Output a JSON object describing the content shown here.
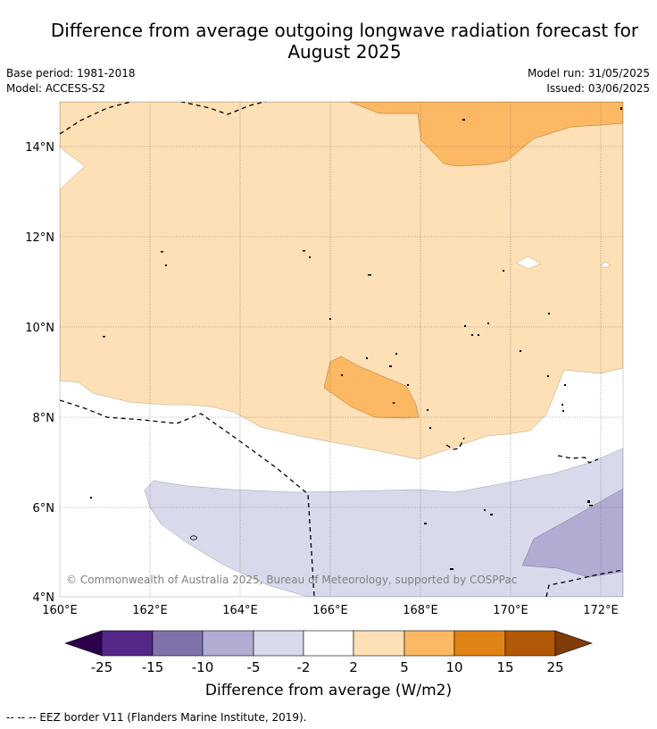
{
  "header": {
    "title_line1": "Difference from average outgoing longwave radiation forecast for",
    "title_line2": "August 2025",
    "base_period": "Base period: 1981-2018",
    "model": "Model: ACCESS-S2",
    "model_run": "Model run: 31/05/2025",
    "issued": "Issued: 03/06/2025"
  },
  "map": {
    "lat_labels": [
      "14°N",
      "12°N",
      "10°N",
      "8°N",
      "6°N",
      "4°N"
    ],
    "lon_labels": [
      "160°E",
      "162°E",
      "164°E",
      "166°E",
      "168°E",
      "170°E",
      "172°E"
    ],
    "copyright": "© Commonwealth of Australia 2025, Bureau of Meteorology, supported by COSPPac"
  },
  "legend": {
    "ticks": [
      "-25",
      "-15",
      "-10",
      "-5",
      "-2",
      "2",
      "5",
      "10",
      "15",
      "25"
    ],
    "colors": [
      "#2d004b",
      "#542788",
      "#8073ac",
      "#b2abd2",
      "#d8daeb",
      "#ffffff",
      "#fee0b6",
      "#fdb863",
      "#e08214",
      "#b35806",
      "#7f3b08"
    ],
    "title": "Difference from average (W/m2)"
  },
  "footnote": "--  --  -- EEZ border V11 (Flanders Marine Institute, 2019)."
}
